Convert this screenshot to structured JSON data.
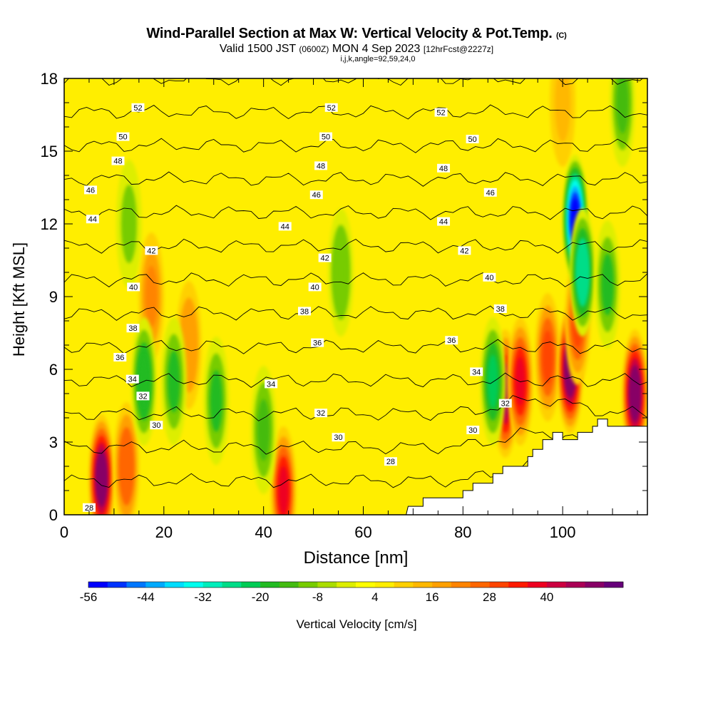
{
  "header": {
    "title": "Wind-Parallel Section at Max W: Vertical Velocity & Pot.Temp.",
    "copyright": "(C)",
    "valid_prefix": "Valid 1500 JST",
    "valid_utc": "(0600Z)",
    "valid_date": "MON 4 Sep 2023",
    "forecast": "[12hrFcst@2227z]",
    "indices": "i,j,k,angle=92,59,24,0"
  },
  "chart_data": {
    "type": "heatmap",
    "xlabel": "Distance [nm]",
    "ylabel": "Height [Kft MSL]",
    "xlim": [
      0,
      117
    ],
    "ylim": [
      0,
      18
    ],
    "xticks": [
      0,
      20,
      40,
      60,
      80,
      100
    ],
    "yticks": [
      0,
      3,
      6,
      9,
      12,
      15,
      18
    ],
    "colorbar": {
      "label": "Vertical Velocity [cm/s]",
      "tick_labels": [
        "-56",
        "-44",
        "-32",
        "-20",
        "-8",
        "4",
        "16",
        "28",
        "40"
      ],
      "levels": [
        -56,
        -52,
        -48,
        -44,
        -40,
        -36,
        -32,
        -28,
        -24,
        -20,
        -16,
        -12,
        -8,
        -4,
        0,
        4,
        8,
        12,
        16,
        20,
        24,
        28,
        32,
        36,
        40,
        44,
        48,
        52
      ],
      "colors": [
        "#0000ff",
        "#0033ff",
        "#0077ff",
        "#00aaff",
        "#00ddff",
        "#00ffee",
        "#00eebb",
        "#00dd88",
        "#00cc55",
        "#22bb22",
        "#44bb11",
        "#77cc00",
        "#aadd00",
        "#ddee00",
        "#ffff00",
        "#ffee00",
        "#ffd000",
        "#ffb800",
        "#ffa000",
        "#ff8400",
        "#ff6600",
        "#ff4400",
        "#ff1a00",
        "#ee0020",
        "#cc0040",
        "#aa0055",
        "#880066",
        "#66007a"
      ]
    },
    "theta_isolines": {
      "units": "K",
      "levels": [
        28,
        30,
        32,
        34,
        36,
        38,
        40,
        42,
        44,
        46,
        48,
        50,
        52
      ],
      "labels": [
        {
          "text": "28",
          "x": 5,
          "y": 0.3
        },
        {
          "text": "28",
          "x": 65.5,
          "y": 2.2
        },
        {
          "text": "30",
          "x": 18.5,
          "y": 3.7
        },
        {
          "text": "30",
          "x": 55,
          "y": 3.2
        },
        {
          "text": "30",
          "x": 82,
          "y": 3.5
        },
        {
          "text": "32",
          "x": 15.8,
          "y": 4.9
        },
        {
          "text": "32",
          "x": 51.5,
          "y": 4.2
        },
        {
          "text": "32",
          "x": 88.5,
          "y": 4.6
        },
        {
          "text": "34",
          "x": 13.7,
          "y": 5.6
        },
        {
          "text": "34",
          "x": 41.5,
          "y": 5.4
        },
        {
          "text": "34",
          "x": 82.7,
          "y": 5.9
        },
        {
          "text": "36",
          "x": 11.2,
          "y": 6.5
        },
        {
          "text": "36",
          "x": 50.8,
          "y": 7.1
        },
        {
          "text": "36",
          "x": 77.7,
          "y": 7.2
        },
        {
          "text": "38",
          "x": 13.8,
          "y": 7.7
        },
        {
          "text": "38",
          "x": 48.2,
          "y": 8.4
        },
        {
          "text": "38",
          "x": 87.5,
          "y": 8.5
        },
        {
          "text": "40",
          "x": 13.9,
          "y": 9.4
        },
        {
          "text": "40",
          "x": 50.3,
          "y": 9.4
        },
        {
          "text": "40",
          "x": 85.3,
          "y": 9.8
        },
        {
          "text": "42",
          "x": 17.5,
          "y": 10.9
        },
        {
          "text": "42",
          "x": 52.3,
          "y": 10.6
        },
        {
          "text": "42",
          "x": 80.3,
          "y": 10.9
        },
        {
          "text": "44",
          "x": 5.7,
          "y": 12.2
        },
        {
          "text": "44",
          "x": 44.3,
          "y": 11.9
        },
        {
          "text": "44",
          "x": 76.1,
          "y": 12.1
        },
        {
          "text": "46",
          "x": 5.3,
          "y": 13.4
        },
        {
          "text": "46",
          "x": 50.6,
          "y": 13.2
        },
        {
          "text": "46",
          "x": 85.5,
          "y": 13.3
        },
        {
          "text": "48",
          "x": 10.8,
          "y": 14.6
        },
        {
          "text": "48",
          "x": 51.5,
          "y": 14.4
        },
        {
          "text": "48",
          "x": 76.1,
          "y": 14.3
        },
        {
          "text": "50",
          "x": 11.8,
          "y": 15.6
        },
        {
          "text": "50",
          "x": 52.5,
          "y": 15.6
        },
        {
          "text": "50",
          "x": 81.9,
          "y": 15.5
        },
        {
          "text": "52",
          "x": 14.8,
          "y": 16.8
        },
        {
          "text": "52",
          "x": 53.6,
          "y": 16.8
        },
        {
          "text": "52",
          "x": 75.6,
          "y": 16.6
        }
      ]
    },
    "updrafts": [
      {
        "x": 7.5,
        "y": 1.5,
        "w": 50
      },
      {
        "x": 12.5,
        "y": 2.0,
        "w": 24
      },
      {
        "x": 44.0,
        "y": 1.0,
        "w": 38
      },
      {
        "x": 17.5,
        "y": 9.0,
        "w": 20
      },
      {
        "x": 25.0,
        "y": 7.0,
        "w": 16
      },
      {
        "x": 88.5,
        "y": 5.0,
        "w": 44
      },
      {
        "x": 91.5,
        "y": 5.5,
        "w": 36
      },
      {
        "x": 97.0,
        "y": 6.5,
        "w": 28
      },
      {
        "x": 101.5,
        "y": 6.0,
        "w": 48
      },
      {
        "x": 103.0,
        "y": 8.0,
        "w": 30
      },
      {
        "x": 114.5,
        "y": 5.0,
        "w": 48
      },
      {
        "x": 100.0,
        "y": 17.0,
        "w": 14
      }
    ],
    "downdrafts": [
      {
        "x": 102.5,
        "y": 12.2,
        "w": -54
      },
      {
        "x": 104.0,
        "y": 10.0,
        "w": -28
      },
      {
        "x": 86.0,
        "y": 5.5,
        "w": -24
      },
      {
        "x": 16.0,
        "y": 5.5,
        "w": -20
      },
      {
        "x": 22.0,
        "y": 5.5,
        "w": -18
      },
      {
        "x": 30.5,
        "y": 4.7,
        "w": -18
      },
      {
        "x": 40.0,
        "y": 3.5,
        "w": -16
      },
      {
        "x": 55.5,
        "y": 10.0,
        "w": -12
      },
      {
        "x": 13.0,
        "y": 12.0,
        "w": -10
      },
      {
        "x": 109.0,
        "y": 9.5,
        "w": -18
      },
      {
        "x": 112.0,
        "y": 17.0,
        "w": -14
      }
    ],
    "terrain": [
      [
        68.6,
        0
      ],
      [
        69,
        0.35
      ],
      [
        72,
        0.35
      ],
      [
        72,
        0.7
      ],
      [
        80,
        0.7
      ],
      [
        80,
        1.0
      ],
      [
        82,
        1.0
      ],
      [
        82,
        1.3
      ],
      [
        86,
        1.3
      ],
      [
        86,
        1.7
      ],
      [
        88,
        1.7
      ],
      [
        88,
        2.0
      ],
      [
        93,
        2.0
      ],
      [
        93,
        2.4
      ],
      [
        94,
        2.4
      ],
      [
        94,
        2.7
      ],
      [
        96,
        2.7
      ],
      [
        96,
        3.1
      ],
      [
        98,
        3.1
      ],
      [
        98,
        3.4
      ],
      [
        100,
        3.4
      ],
      [
        100,
        3.1
      ],
      [
        103,
        3.1
      ],
      [
        103,
        3.4
      ],
      [
        106,
        3.4
      ],
      [
        106,
        3.65
      ],
      [
        107,
        3.65
      ],
      [
        107,
        3.95
      ],
      [
        109,
        3.95
      ],
      [
        109,
        3.65
      ],
      [
        117,
        3.65
      ],
      [
        117,
        0
      ]
    ]
  }
}
